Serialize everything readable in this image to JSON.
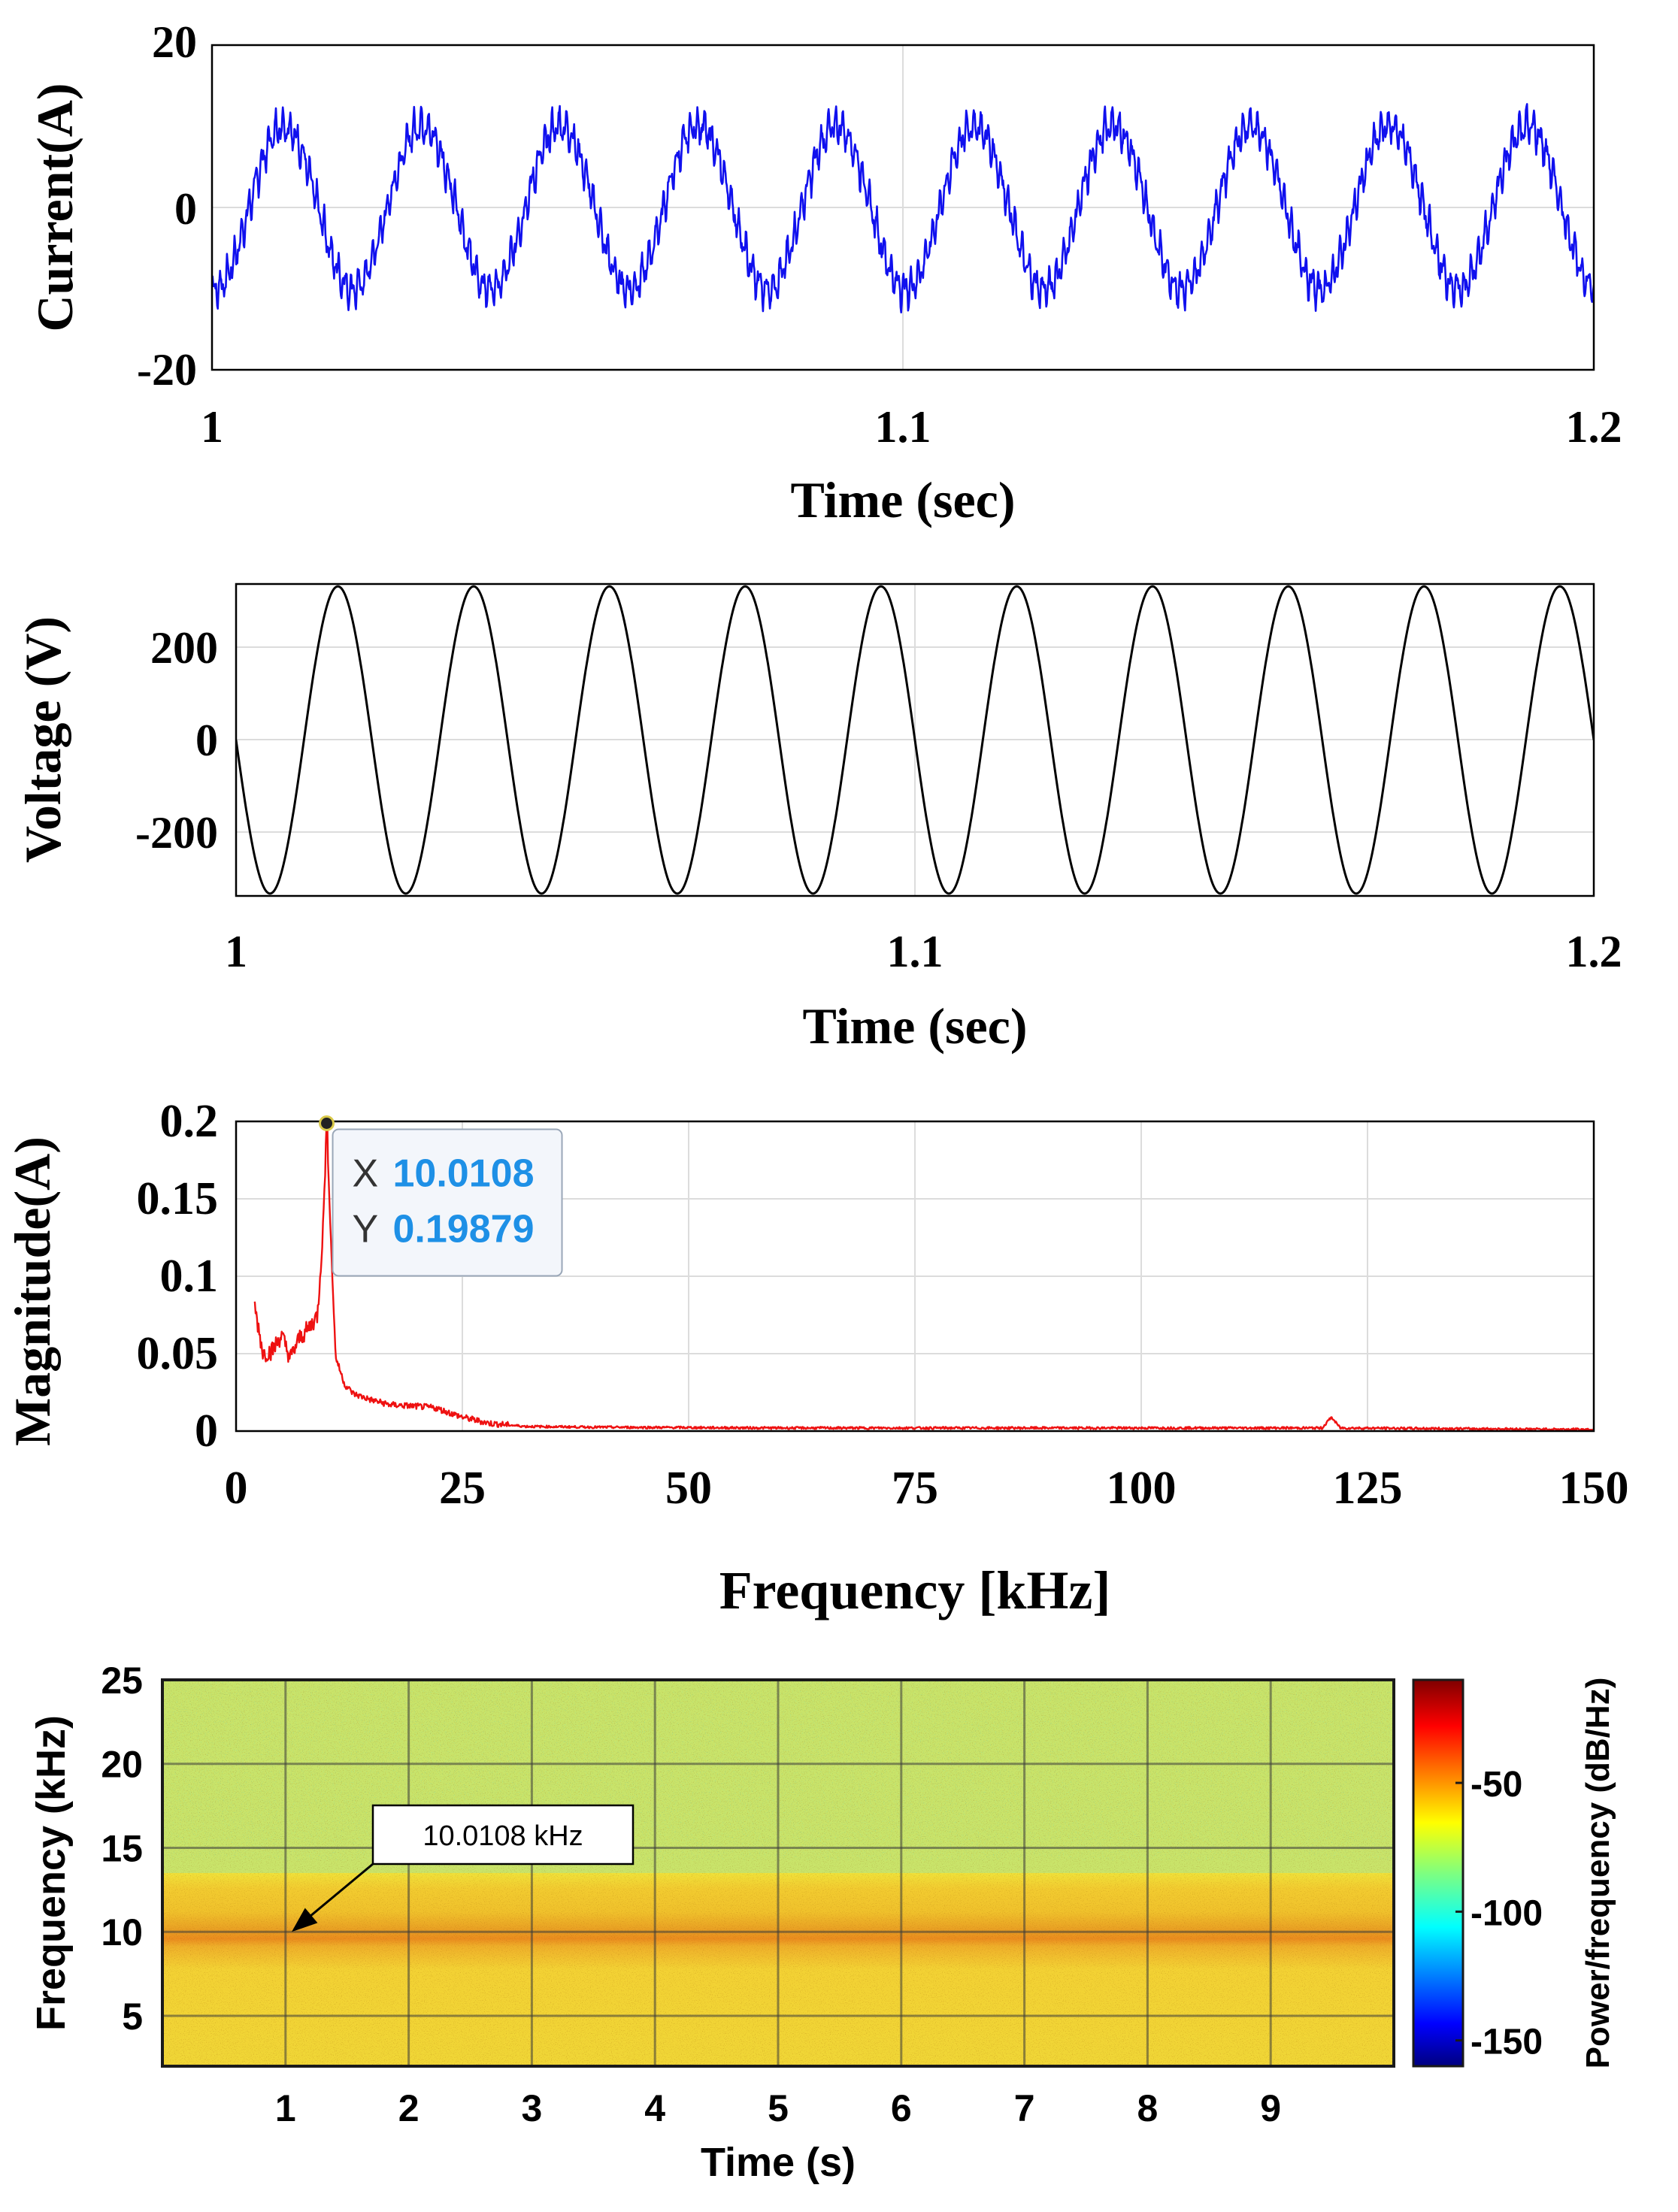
{
  "chart_data": [
    {
      "type": "line",
      "name": "current",
      "xlabel": "Time (sec)",
      "ylabel": "Current(A)",
      "xlim": [
        1,
        1.2
      ],
      "ylim": [
        -20,
        20
      ],
      "xticks": [
        "1",
        "1.1",
        "1.2"
      ],
      "yticks": [
        "20",
        "0",
        "-20"
      ],
      "series": [
        {
          "name": "current",
          "color": "#0000ff",
          "frequency_hz": 50,
          "amplitude": 10,
          "ripple_amplitude": 1.5
        }
      ],
      "grid": true
    },
    {
      "type": "line",
      "name": "voltage",
      "xlabel": "Time (sec)",
      "ylabel": "Voltage (V)",
      "xlim": [
        1,
        1.2
      ],
      "ylim": [
        -330,
        330
      ],
      "xticks": [
        "1",
        "1.1",
        "1.2"
      ],
      "yticks": [
        "200",
        "0",
        "-200"
      ],
      "series": [
        {
          "name": "voltage",
          "color": "#000000",
          "frequency_hz": 50,
          "amplitude": 325
        }
      ],
      "grid": true
    },
    {
      "type": "line",
      "name": "fft",
      "xlabel": "Frequency [kHz]",
      "ylabel": "Magnitude(A)",
      "xlim": [
        0,
        150
      ],
      "ylim": [
        0,
        0.2
      ],
      "xticks": [
        "0",
        "25",
        "50",
        "75",
        "100",
        "125",
        "150"
      ],
      "yticks": [
        "0.2",
        "0.15",
        "0.1",
        "0.05",
        "0"
      ],
      "series": [
        {
          "name": "spectrum",
          "color": "#ff0000",
          "x": [
            2,
            3,
            4,
            5,
            6,
            7,
            8,
            9,
            9.6,
            10.0108,
            10.5,
            11,
            12,
            13,
            15,
            17,
            20,
            22,
            25,
            28,
            32,
            40,
            60,
            100,
            120,
            121,
            122,
            150
          ],
          "y": [
            0.082,
            0.05,
            0.052,
            0.062,
            0.047,
            0.06,
            0.066,
            0.075,
            0.13,
            0.19879,
            0.12,
            0.048,
            0.03,
            0.024,
            0.02,
            0.017,
            0.016,
            0.015,
            0.009,
            0.005,
            0.003,
            0.0025,
            0.002,
            0.002,
            0.002,
            0.009,
            0.002,
            0.001
          ]
        }
      ],
      "datatip": {
        "x_label": "X",
        "x_value": "10.0108",
        "y_label": "Y",
        "y_value": "0.19879"
      },
      "grid": true
    },
    {
      "type": "heatmap",
      "name": "spectrogram",
      "xlabel": "Time (s)",
      "ylabel": "Frequency (kHz)",
      "colorbar_label": "Power/frequency (dB/Hz)",
      "xlim": [
        0,
        10
      ],
      "ylim": [
        2,
        25
      ],
      "clim": [
        -160,
        -10
      ],
      "xticks": [
        "1",
        "2",
        "3",
        "4",
        "5",
        "6",
        "7",
        "8",
        "9"
      ],
      "yticks": [
        "25",
        "20",
        "15",
        "10",
        "5"
      ],
      "colorbar_ticks": [
        "-50",
        "-100",
        "-150"
      ],
      "background_level_db": -75,
      "band_center_khz": 10.0108,
      "band_level_db": -42,
      "annotation": {
        "text": "10.0108 kHz",
        "x": 1.05,
        "y": 10
      },
      "grid": true
    }
  ]
}
